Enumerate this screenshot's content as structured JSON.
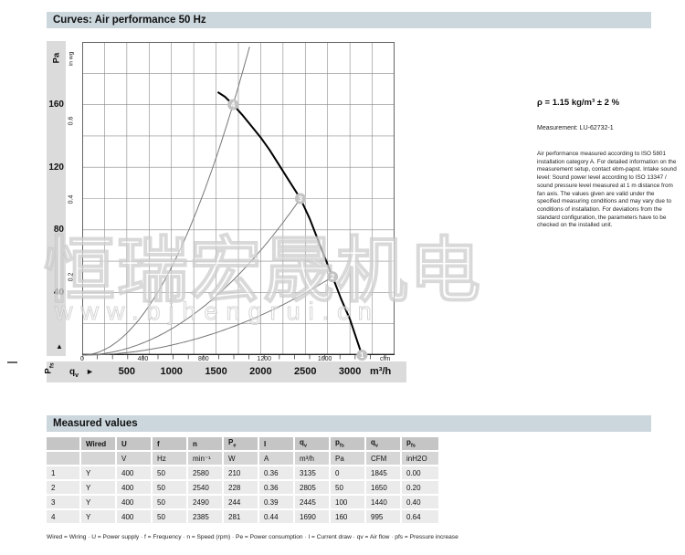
{
  "page_title": "Curves: Air performance 50 Hz",
  "colors": {
    "section_bar_bg": "#cbd6dd",
    "strip_bg": "#dbdbdb",
    "grid": "#8a8a8a",
    "plot_border": "#666666",
    "axis_line": "#222222",
    "fan_curve": "#000000",
    "system_curve": "#777777",
    "marker_fill": "#c3c3c3",
    "marker_text": "#ffffff",
    "table_header_bg": "#c5c5c5",
    "table_unit_bg": "#d6d6d6",
    "table_row_bg": "#ebebeb"
  },
  "chart_data": {
    "type": "line",
    "title": "Air performance 50 Hz",
    "x_axis": {
      "label_main": "q",
      "label_sub": "v",
      "unit_primary": "m³/h",
      "unit_secondary": "cfm",
      "xlim_m3h": [
        0,
        3500
      ],
      "grid_step_m3h": 250,
      "ticks_m3h": [
        500,
        1000,
        1500,
        2000,
        2500,
        3000
      ],
      "ticks_cfm": [
        0,
        400,
        800,
        1200,
        1600
      ],
      "cfm_minor_tick_step": 100,
      "cfm_minor_tick_max": 2000
    },
    "y_axis": {
      "label_main": "P",
      "label_sub": "fs",
      "unit_primary": "Pa",
      "unit_secondary": "in wg",
      "ylim_pa": [
        0,
        200
      ],
      "grid_step_pa": 20,
      "ticks_pa": [
        40,
        80,
        120,
        160
      ],
      "ticks_inwg": [
        0.2,
        0.4,
        0.6
      ]
    },
    "fan_curve": {
      "name": "air performance curve 50 Hz",
      "points_m3h_pa": [
        [
          1519,
          168
        ],
        [
          1600,
          165
        ],
        [
          1690,
          160
        ],
        [
          1800,
          153
        ],
        [
          1900,
          146
        ],
        [
          2000,
          139
        ],
        [
          2100,
          131
        ],
        [
          2200,
          122
        ],
        [
          2300,
          113
        ],
        [
          2445,
          100
        ],
        [
          2550,
          87
        ],
        [
          2700,
          65
        ],
        [
          2805,
          50
        ],
        [
          2900,
          36
        ],
        [
          3000,
          23
        ],
        [
          3135,
          0
        ]
      ]
    },
    "operating_points": [
      {
        "id": 1,
        "qv_m3h": 3135,
        "pfs_pa": 0
      },
      {
        "id": 2,
        "qv_m3h": 2805,
        "pfs_pa": 50
      },
      {
        "id": 3,
        "qv_m3h": 2445,
        "pfs_pa": 100
      },
      {
        "id": 4,
        "qv_m3h": 1690,
        "pfs_pa": 160
      }
    ],
    "system_curves": [
      {
        "through_point": 4,
        "extend_to_pa": 200
      },
      {
        "through_point": 3
      },
      {
        "through_point": 2
      }
    ],
    "legend": "none",
    "grid": "on"
  },
  "side_text": {
    "density": "ρ = 1.15 kg/m³ ± 2 %",
    "measurement": "Measurement: LU-62732-1",
    "paragraph": "Air performance measured according to ISO 5801 installation category A. For detailed information on the measurement setup, contact ebm-papst. Intake sound level: Sound power level according to ISO 13347 / sound pressure level measured at 1 m distance from fan axis. The values given are valid under the specified measuring conditions and may vary due to conditions of installation. For deviations from the standard configuration, the parameters have to be checked on the installed unit."
  },
  "watermark": {
    "line1": "恒瑞宏晟机电",
    "line2": "www.bjhengrui.cn"
  },
  "table": {
    "section_title": "Measured values",
    "headers": [
      {
        "main": "",
        "sub": ""
      },
      {
        "main": "Wired",
        "sub": ""
      },
      {
        "main": "U",
        "sub": ""
      },
      {
        "main": "f",
        "sub": ""
      },
      {
        "main": "n",
        "sub": ""
      },
      {
        "main": "P",
        "sub": "e"
      },
      {
        "main": "I",
        "sub": ""
      },
      {
        "main": "q",
        "sub": "v"
      },
      {
        "main": "p",
        "sub": "fs"
      },
      {
        "main": "q",
        "sub": "v"
      },
      {
        "main": "p",
        "sub": "fs"
      }
    ],
    "units": [
      "",
      "",
      "V",
      "Hz",
      "min⁻¹",
      "W",
      "A",
      "m³/h",
      "Pa",
      "CFM",
      "inH2O"
    ],
    "rows": [
      [
        "1",
        "Y",
        "400",
        "50",
        "2580",
        "210",
        "0.36",
        "3135",
        "0",
        "1845",
        "0.00"
      ],
      [
        "2",
        "Y",
        "400",
        "50",
        "2540",
        "228",
        "0.36",
        "2805",
        "50",
        "1650",
        "0.20"
      ],
      [
        "3",
        "Y",
        "400",
        "50",
        "2490",
        "244",
        "0.39",
        "2445",
        "100",
        "1440",
        "0.40"
      ],
      [
        "4",
        "Y",
        "400",
        "50",
        "2385",
        "281",
        "0.44",
        "1690",
        "160",
        "995",
        "0.64"
      ]
    ],
    "footnote": "Wired = Wiring · U = Power supply · f = Frequency · n = Speed (rpm) · Pe = Power consumption · I = Current draw · qv = Air flow · pfs = Pressure increase"
  }
}
